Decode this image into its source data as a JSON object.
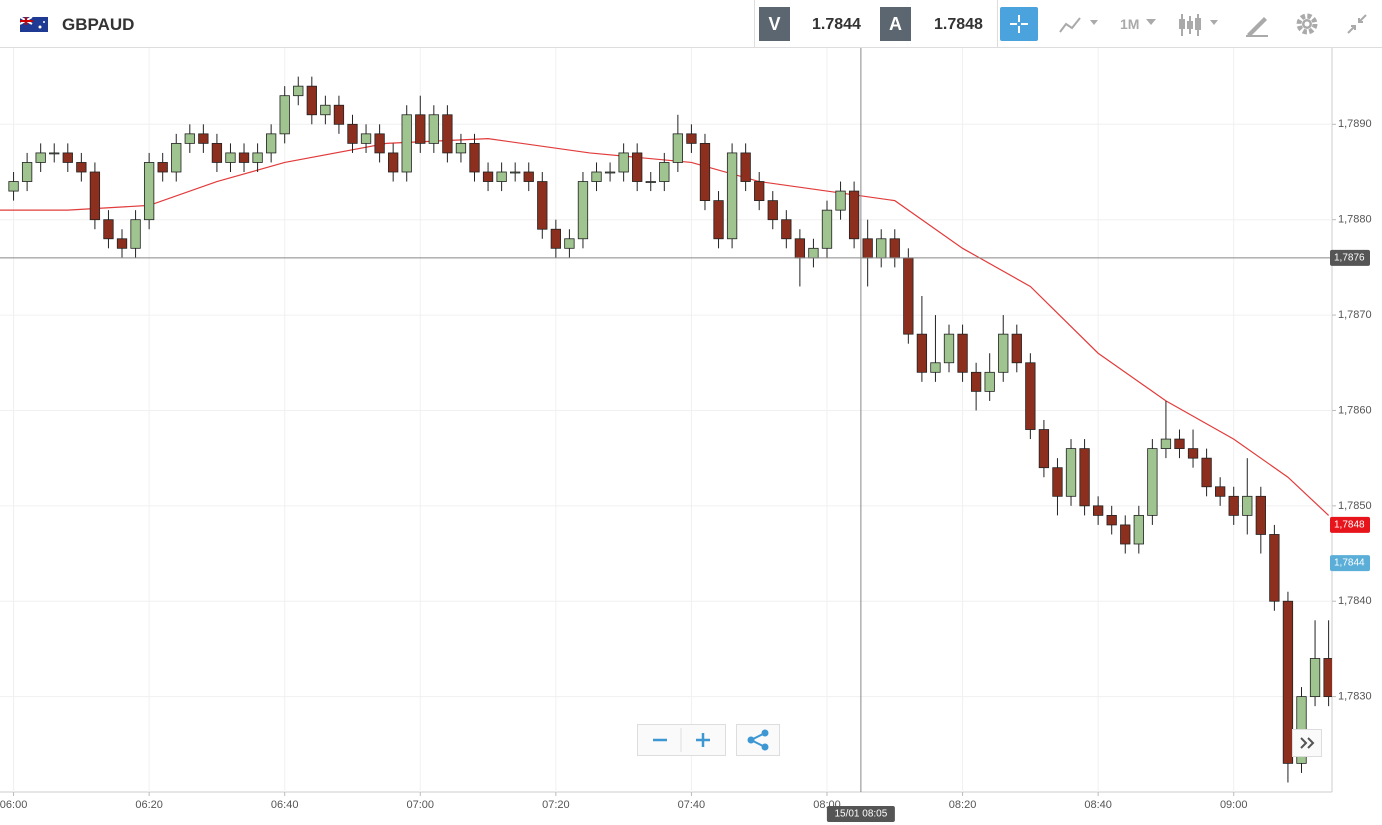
{
  "toolbar": {
    "symbol": "GBPAUD",
    "sell_label": "V",
    "sell_price": "1.7844",
    "buy_label": "A",
    "buy_price": "1.7848",
    "timeframe": "1M"
  },
  "chart_data": {
    "type": "candlestick",
    "up_color": "#9fc48f",
    "down_color": "#8c2f1e",
    "grid": true,
    "xlim": [
      -2,
      194.5
    ],
    "ylim": [
      1.782,
      1.7898
    ],
    "xticks": [
      {
        "value": 0,
        "label": "06:00"
      },
      {
        "value": 20,
        "label": "06:20"
      },
      {
        "value": 40,
        "label": "06:40"
      },
      {
        "value": 60,
        "label": "07:00"
      },
      {
        "value": 80,
        "label": "07:20"
      },
      {
        "value": 100,
        "label": "07:40"
      },
      {
        "value": 120,
        "label": "08:00"
      },
      {
        "value": 140,
        "label": "08:20"
      },
      {
        "value": 160,
        "label": "08:40"
      },
      {
        "value": 180,
        "label": "09:00"
      }
    ],
    "yticks": [
      {
        "value": 1.783,
        "label": "1,7830"
      },
      {
        "value": 1.784,
        "label": "1,7840"
      },
      {
        "value": 1.785,
        "label": "1,7850"
      },
      {
        "value": 1.786,
        "label": "1,7860"
      },
      {
        "value": 1.787,
        "label": "1,7870"
      },
      {
        "value": 1.788,
        "label": "1,7880"
      },
      {
        "value": 1.789,
        "label": "1,7890"
      }
    ],
    "x": [
      0,
      2,
      4,
      6,
      8,
      10,
      12,
      14,
      16,
      18,
      20,
      22,
      24,
      26,
      28,
      30,
      32,
      34,
      36,
      38,
      40,
      42,
      44,
      46,
      48,
      50,
      52,
      54,
      56,
      58,
      60,
      62,
      64,
      66,
      68,
      70,
      72,
      74,
      76,
      78,
      80,
      82,
      84,
      86,
      88,
      90,
      92,
      94,
      96,
      98,
      100,
      102,
      104,
      106,
      108,
      110,
      112,
      114,
      116,
      118,
      120,
      122,
      124,
      126,
      128,
      130,
      132,
      134,
      136,
      138,
      140,
      142,
      144,
      146,
      148,
      150,
      152,
      154,
      156,
      158,
      160,
      162,
      164,
      166,
      168,
      170,
      172,
      174,
      176,
      178,
      180,
      182,
      184,
      186,
      188,
      190,
      192,
      194
    ],
    "open": [
      1.7883,
      1.7884,
      1.7886,
      1.7887,
      1.7887,
      1.7886,
      1.7885,
      1.788,
      1.7878,
      1.7877,
      1.788,
      1.7886,
      1.7885,
      1.7888,
      1.7889,
      1.7888,
      1.7886,
      1.7887,
      1.7886,
      1.7887,
      1.7889,
      1.7893,
      1.7894,
      1.7891,
      1.7892,
      1.789,
      1.7888,
      1.7889,
      1.7887,
      1.7885,
      1.7891,
      1.7888,
      1.7891,
      1.7887,
      1.7888,
      1.7885,
      1.7884,
      1.7885,
      1.7885,
      1.7884,
      1.7879,
      1.7877,
      1.7878,
      1.7884,
      1.7885,
      1.7885,
      1.7887,
      1.7884,
      1.7884,
      1.7886,
      1.7889,
      1.7888,
      1.7882,
      1.7878,
      1.7887,
      1.7884,
      1.7882,
      1.788,
      1.7878,
      1.7876,
      1.7877,
      1.7881,
      1.7883,
      1.7878,
      1.7876,
      1.7878,
      1.7876,
      1.7868,
      1.7864,
      1.7865,
      1.7868,
      1.7864,
      1.7862,
      1.7864,
      1.7868,
      1.7865,
      1.7858,
      1.7854,
      1.7851,
      1.7856,
      1.785,
      1.7849,
      1.7848,
      1.7846,
      1.7849,
      1.7856,
      1.7857,
      1.7856,
      1.7855,
      1.7852,
      1.7851,
      1.7849,
      1.7851,
      1.7847,
      1.784,
      1.7823,
      1.783,
      1.7834
    ],
    "high": [
      1.7885,
      1.7887,
      1.7888,
      1.7888,
      1.7888,
      1.7887,
      1.7886,
      1.7881,
      1.7879,
      1.7881,
      1.7887,
      1.7887,
      1.7889,
      1.789,
      1.789,
      1.7889,
      1.7888,
      1.7888,
      1.7888,
      1.789,
      1.7894,
      1.7895,
      1.7895,
      1.7893,
      1.7893,
      1.7891,
      1.789,
      1.789,
      1.7888,
      1.7892,
      1.7893,
      1.7892,
      1.7892,
      1.7889,
      1.7889,
      1.7886,
      1.7886,
      1.7886,
      1.7886,
      1.7885,
      1.788,
      1.7879,
      1.7885,
      1.7886,
      1.7886,
      1.7888,
      1.7888,
      1.7885,
      1.7887,
      1.7891,
      1.789,
      1.7889,
      1.7883,
      1.7888,
      1.7888,
      1.7885,
      1.7883,
      1.7881,
      1.7879,
      1.7878,
      1.7882,
      1.7884,
      1.7884,
      1.788,
      1.7879,
      1.7879,
      1.7877,
      1.7872,
      1.787,
      1.7869,
      1.7869,
      1.7865,
      1.7866,
      1.787,
      1.7869,
      1.7866,
      1.7859,
      1.7855,
      1.7857,
      1.7857,
      1.7851,
      1.785,
      1.7849,
      1.785,
      1.7857,
      1.7861,
      1.7858,
      1.7858,
      1.7856,
      1.7853,
      1.7852,
      1.7855,
      1.7852,
      1.7848,
      1.7841,
      1.7831,
      1.7838,
      1.7838
    ],
    "low": [
      1.7882,
      1.7883,
      1.7885,
      1.7886,
      1.7885,
      1.7884,
      1.7879,
      1.7877,
      1.7876,
      1.7876,
      1.7879,
      1.7884,
      1.7884,
      1.7887,
      1.7887,
      1.7885,
      1.7885,
      1.7885,
      1.7885,
      1.7886,
      1.7888,
      1.7892,
      1.789,
      1.789,
      1.7889,
      1.7887,
      1.7887,
      1.7886,
      1.7884,
      1.7884,
      1.7887,
      1.7887,
      1.7886,
      1.7886,
      1.7884,
      1.7883,
      1.7883,
      1.7884,
      1.7883,
      1.7878,
      1.7876,
      1.7876,
      1.7877,
      1.7883,
      1.7884,
      1.7884,
      1.7883,
      1.7883,
      1.7883,
      1.7885,
      1.7887,
      1.7881,
      1.7877,
      1.7877,
      1.7883,
      1.7881,
      1.7879,
      1.7877,
      1.7873,
      1.7875,
      1.7876,
      1.788,
      1.7877,
      1.7873,
      1.7875,
      1.7875,
      1.7867,
      1.7863,
      1.7863,
      1.7864,
      1.7863,
      1.786,
      1.7861,
      1.7863,
      1.7864,
      1.7857,
      1.7853,
      1.7849,
      1.785,
      1.7849,
      1.7848,
      1.7847,
      1.7845,
      1.7845,
      1.7848,
      1.7855,
      1.7855,
      1.7854,
      1.7851,
      1.785,
      1.7848,
      1.7847,
      1.7845,
      1.7839,
      1.7821,
      1.7822,
      1.7829,
      1.7829
    ],
    "close": [
      1.7884,
      1.7886,
      1.7887,
      1.7887,
      1.7886,
      1.7885,
      1.788,
      1.7878,
      1.7877,
      1.788,
      1.7886,
      1.7885,
      1.7888,
      1.7889,
      1.7888,
      1.7886,
      1.7887,
      1.7886,
      1.7887,
      1.7889,
      1.7893,
      1.7894,
      1.7891,
      1.7892,
      1.789,
      1.7888,
      1.7889,
      1.7887,
      1.7885,
      1.7891,
      1.7888,
      1.7891,
      1.7887,
      1.7888,
      1.7885,
      1.7884,
      1.7885,
      1.7885,
      1.7884,
      1.7879,
      1.7877,
      1.7878,
      1.7884,
      1.7885,
      1.7885,
      1.7887,
      1.7884,
      1.7884,
      1.7886,
      1.7889,
      1.7888,
      1.7882,
      1.7878,
      1.7887,
      1.7884,
      1.7882,
      1.788,
      1.7878,
      1.7876,
      1.7877,
      1.7881,
      1.7883,
      1.7878,
      1.7876,
      1.7878,
      1.7876,
      1.7868,
      1.7864,
      1.7865,
      1.7868,
      1.7864,
      1.7862,
      1.7864,
      1.7868,
      1.7865,
      1.7858,
      1.7854,
      1.7851,
      1.7856,
      1.785,
      1.7849,
      1.7848,
      1.7846,
      1.7849,
      1.7856,
      1.7857,
      1.7856,
      1.7855,
      1.7852,
      1.7851,
      1.7849,
      1.7851,
      1.7847,
      1.784,
      1.7823,
      1.783,
      1.7834,
      1.783
    ],
    "moving_average": {
      "color": "#e23b3b",
      "x": [
        -2,
        8,
        20,
        30,
        40,
        55,
        70,
        85,
        100,
        110,
        120,
        130,
        140,
        150,
        160,
        170,
        180,
        188,
        194
      ],
      "values": [
        1.7881,
        1.7881,
        1.78815,
        1.7884,
        1.7886,
        1.7888,
        1.78885,
        1.7887,
        1.7886,
        1.7884,
        1.7883,
        1.7882,
        1.7877,
        1.7873,
        1.7866,
        1.7861,
        1.7857,
        1.7853,
        1.7849
      ]
    },
    "crosshair": {
      "x": 125,
      "label": "15/01 08:05"
    },
    "price_tags": [
      {
        "value": 1.7876,
        "label": "1,7876",
        "color": "#555555"
      },
      {
        "value": 1.7848,
        "label": "1,7848",
        "color": "#e8141b"
      },
      {
        "value": 1.7844,
        "label": "1,7844",
        "color": "#5aaed8"
      }
    ]
  }
}
